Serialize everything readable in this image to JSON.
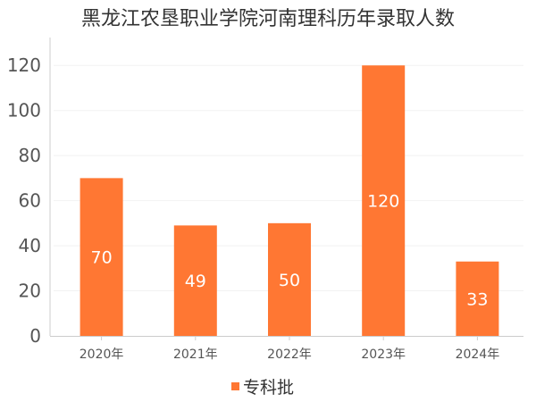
{
  "chart_data": {
    "type": "bar",
    "title": "黑龙江农垦职业学院河南理科历年录取人数",
    "categories": [
      "2020年",
      "2021年",
      "2022年",
      "2023年",
      "2024年"
    ],
    "series": [
      {
        "name": "专科批",
        "values": [
          70,
          49,
          50,
          120,
          33
        ],
        "color": "#FF7733"
      }
    ],
    "yticks": [
      0,
      20,
      40,
      60,
      80,
      100,
      120
    ],
    "ylim": [
      0,
      130
    ],
    "grid": true,
    "data_labels": true,
    "legend": "bottom-center"
  }
}
